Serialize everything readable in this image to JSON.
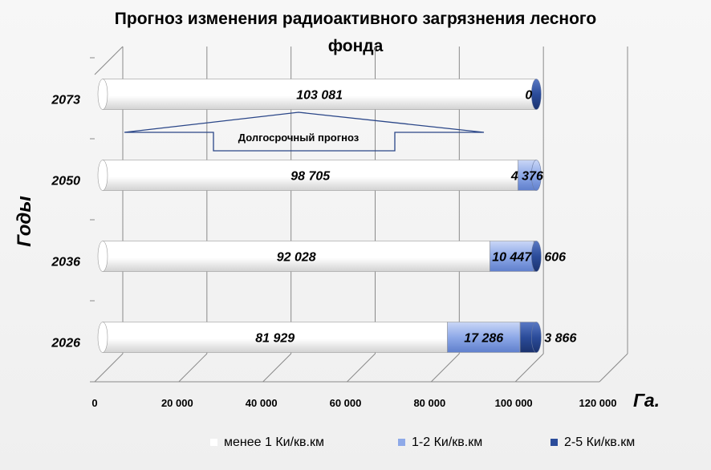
{
  "chart_data": {
    "type": "bar",
    "orientation": "horizontal",
    "stacked": true,
    "three_d": true,
    "title": "Прогноз изменения радиоактивного загрязнения лесного фонда",
    "title_lines": [
      "Прогноз изменения радиоактивного загрязнения лесного",
      "фонда"
    ],
    "xlabel": "Га.",
    "ylabel": "Годы",
    "xlim": [
      0,
      120000
    ],
    "x_ticks": [
      "0",
      "20 000",
      "40 000",
      "60 000",
      "80 000",
      "100 000",
      "120 000"
    ],
    "x_tick_values": [
      0,
      20000,
      40000,
      60000,
      80000,
      100000,
      120000
    ],
    "categories": [
      "2026",
      "2036",
      "2050",
      "2073"
    ],
    "series": [
      {
        "name": "менее 1 Ки/кв.км",
        "color": "#ffffff",
        "values": [
          81929,
          92028,
          98705,
          103081
        ],
        "labels": [
          "81 929",
          "92 028",
          "98 705",
          "103 081"
        ]
      },
      {
        "name": "1-2 Ки/кв.км",
        "color": "#8ea9e8",
        "values": [
          17286,
          10447,
          4376,
          0
        ],
        "labels": [
          "17 286",
          "10 447",
          "4 376",
          ""
        ]
      },
      {
        "name": "2-5 Ки/кв.км",
        "color": "#2b4c9a",
        "values": [
          3866,
          606,
          0,
          0
        ],
        "labels": [
          "3 866",
          "606",
          "",
          "0"
        ]
      }
    ],
    "annotation": "Долгосрочный прогноз",
    "legend_position": "bottom",
    "grid": true
  }
}
